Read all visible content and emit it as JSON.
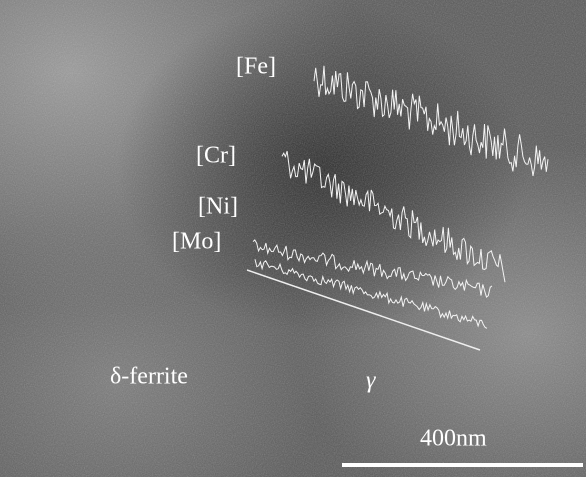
{
  "labels": {
    "fe": "[Fe]",
    "cr": "[Cr]",
    "ni": "[Ni]",
    "mo": "[Mo]",
    "delta_ferrite": "δ-ferrite",
    "gamma": "γ",
    "scale": "400nm"
  }
}
